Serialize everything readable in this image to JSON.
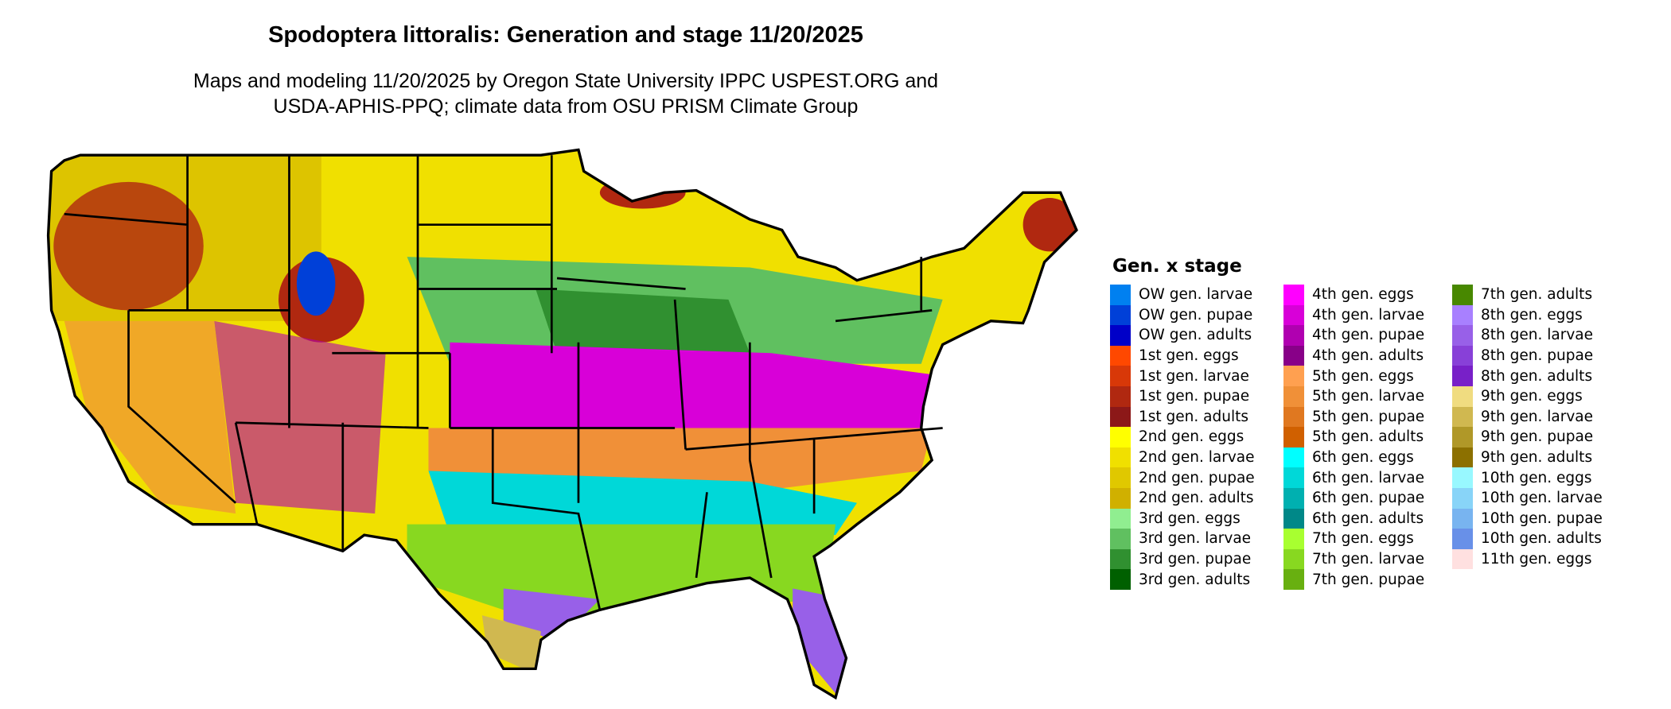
{
  "title": "Spodoptera littoralis: Generation and stage 11/20/2025",
  "subtitle_lines": [
    "Maps and modeling 11/20/2025 by Oregon State University IPPC USPEST.ORG and",
    "USDA-APHIS-PPQ; climate data from OSU PRISM Climate Group"
  ],
  "legend": {
    "title": "Gen. x stage",
    "items": [
      {
        "label": "OW gen. larvae",
        "color": "#0080f0"
      },
      {
        "label": "OW gen. pupae",
        "color": "#0040d8"
      },
      {
        "label": "OW gen. adults",
        "color": "#0000c8"
      },
      {
        "label": "1st gen. eggs",
        "color": "#ff4800"
      },
      {
        "label": "1st gen. larvae",
        "color": "#d83808"
      },
      {
        "label": "1st gen. pupae",
        "color": "#b02810"
      },
      {
        "label": "1st gen. adults",
        "color": "#8c1818"
      },
      {
        "label": "2nd gen. eggs",
        "color": "#ffff00"
      },
      {
        "label": "2nd gen. larvae",
        "color": "#f0e000"
      },
      {
        "label": "2nd gen. pupae",
        "color": "#e0c800"
      },
      {
        "label": "2nd gen. adults",
        "color": "#d0b000"
      },
      {
        "label": "3rd gen. eggs",
        "color": "#90ee90"
      },
      {
        "label": "3rd gen. larvae",
        "color": "#60c060"
      },
      {
        "label": "3rd gen. pupae",
        "color": "#309030"
      },
      {
        "label": "3rd gen. adults",
        "color": "#006000"
      },
      {
        "label": "4th gen. eggs",
        "color": "#ff00ff"
      },
      {
        "label": "4th gen. larvae",
        "color": "#d800d8"
      },
      {
        "label": "4th gen. pupae",
        "color": "#b000b0"
      },
      {
        "label": "4th gen. adults",
        "color": "#880088"
      },
      {
        "label": "5th gen. eggs",
        "color": "#ffa050"
      },
      {
        "label": "5th gen. larvae",
        "color": "#f09038"
      },
      {
        "label": "5th gen. pupae",
        "color": "#e07820"
      },
      {
        "label": "5th gen. adults",
        "color": "#d06000"
      },
      {
        "label": "6th gen. eggs",
        "color": "#00ffff"
      },
      {
        "label": "6th gen. larvae",
        "color": "#00d8d8"
      },
      {
        "label": "6th gen. pupae",
        "color": "#00b0b0"
      },
      {
        "label": "6th gen. adults",
        "color": "#008888"
      },
      {
        "label": "7th gen. eggs",
        "color": "#a8ff30"
      },
      {
        "label": "7th gen. larvae",
        "color": "#88d820"
      },
      {
        "label": "7th gen. pupae",
        "color": "#68b010"
      },
      {
        "label": "7th gen. adults",
        "color": "#488800"
      },
      {
        "label": "8th gen. eggs",
        "color": "#a880ff"
      },
      {
        "label": "8th gen. larvae",
        "color": "#9860e8"
      },
      {
        "label": "8th gen. pupae",
        "color": "#8840d8"
      },
      {
        "label": "8th gen. adults",
        "color": "#7820c8"
      },
      {
        "label": "9th gen. eggs",
        "color": "#f0dc80"
      },
      {
        "label": "9th gen. larvae",
        "color": "#d0b850"
      },
      {
        "label": "9th gen. pupae",
        "color": "#b09828"
      },
      {
        "label": "9th gen. adults",
        "color": "#8c7000"
      },
      {
        "label": "10th gen. eggs",
        "color": "#98f8ff"
      },
      {
        "label": "10th gen. larvae",
        "color": "#88d4f8"
      },
      {
        "label": "10th gen. pupae",
        "color": "#78b4f0"
      },
      {
        "label": "10th gen. adults",
        "color": "#6890e8"
      },
      {
        "label": "11th gen. eggs",
        "color": "#ffe0e0"
      }
    ]
  }
}
